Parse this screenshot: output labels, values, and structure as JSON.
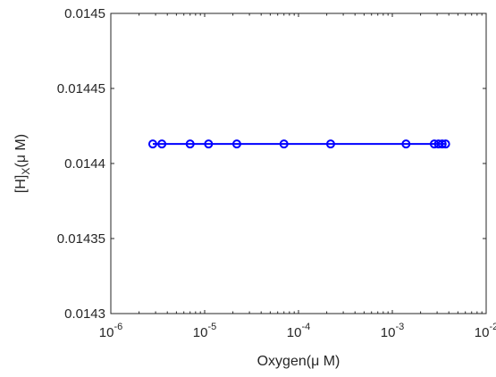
{
  "chart_data": {
    "type": "line",
    "title": "",
    "xlabel": "Oxygen(μ M)",
    "ylabel": {
      "main": "[H]",
      "subscript": "X",
      "suffix": "(μ M)"
    },
    "xscale": "log",
    "xlim": [
      1e-06,
      0.01
    ],
    "ylim": [
      0.0143,
      0.0145
    ],
    "grid": false,
    "legend": "none",
    "x_ticks": [
      {
        "base": "10",
        "exp": "-6",
        "value": 1e-06
      },
      {
        "base": "10",
        "exp": "-5",
        "value": 1e-05
      },
      {
        "base": "10",
        "exp": "-4",
        "value": 0.0001
      },
      {
        "base": "10",
        "exp": "-3",
        "value": 0.001
      },
      {
        "base": "10",
        "exp": "-2",
        "value": 0.01
      }
    ],
    "y_ticks": [
      {
        "label": "0.0143",
        "value": 0.0143
      },
      {
        "label": "0.01435",
        "value": 0.01435
      },
      {
        "label": "0.0144",
        "value": 0.0144
      },
      {
        "label": "0.01445",
        "value": 0.01445
      },
      {
        "label": "0.0145",
        "value": 0.0145
      }
    ],
    "series": [
      {
        "color": "#0000ff",
        "marker": "circle",
        "x": [
          2.8e-06,
          3.5e-06,
          7e-06,
          1.1e-05,
          2.2e-05,
          7e-05,
          0.00022,
          0.0014,
          0.0028,
          0.0031,
          0.0034,
          0.0037
        ],
        "y": [
          0.014413,
          0.014413,
          0.014413,
          0.014413,
          0.014413,
          0.014413,
          0.014413,
          0.014413,
          0.014413,
          0.014413,
          0.014413,
          0.014413
        ]
      }
    ]
  }
}
